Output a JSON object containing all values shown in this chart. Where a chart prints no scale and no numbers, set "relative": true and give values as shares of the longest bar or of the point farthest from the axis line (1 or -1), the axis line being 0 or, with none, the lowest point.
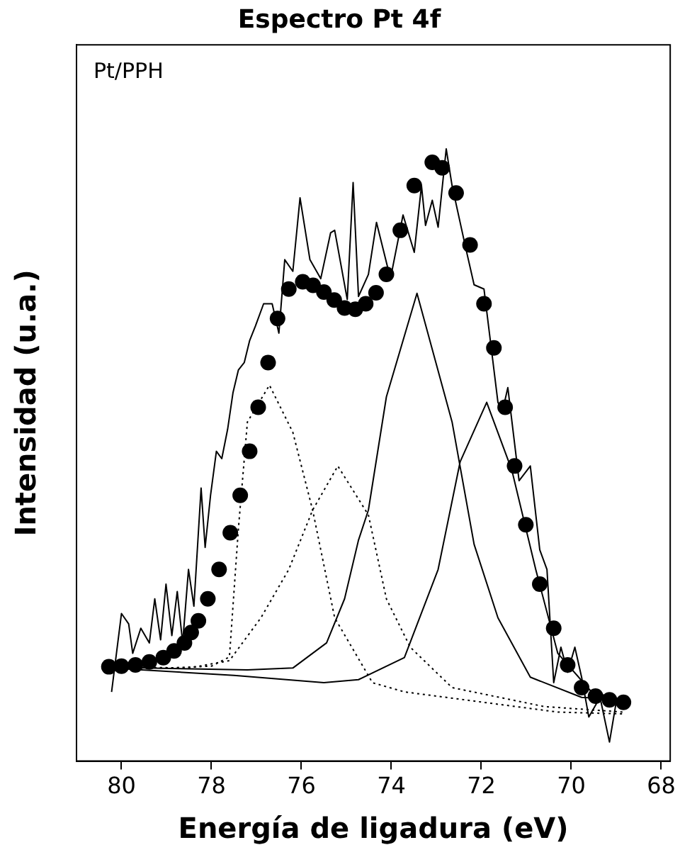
{
  "chart_data": {
    "type": "line",
    "title": "Espectro Pt 4f",
    "xlabel": "Energía de ligadura (eV)",
    "ylabel": "Intensidad (u.a.)",
    "annotations": [
      "Pt/PPH"
    ],
    "relative": true,
    "xlim": [
      81,
      67.8
    ],
    "xticks": [
      80,
      78,
      76,
      74,
      72,
      70,
      68
    ],
    "grid": false,
    "legend": false,
    "marker": "none",
    "series": [
      {
        "type": "line",
        "color": "#000000",
        "line_style": "solid",
        "x": [
          80.22,
          80.0,
          79.84,
          79.75,
          79.57,
          79.38,
          79.26,
          79.13,
          79.01,
          78.88,
          78.76,
          78.64,
          78.51,
          78.39,
          78.23,
          78.14,
          78.02,
          77.89,
          77.77,
          77.64,
          77.52,
          77.4,
          77.27,
          77.15,
          77.02,
          76.84,
          76.65,
          76.5,
          76.37,
          76.19,
          76.03,
          75.81,
          75.57,
          75.35,
          75.26,
          74.98,
          74.85,
          74.73,
          74.51,
          74.33,
          74.02,
          73.74,
          73.49,
          73.33,
          73.24,
          73.09,
          72.96,
          72.78,
          72.65,
          72.34,
          72.16,
          71.94,
          71.63,
          71.53,
          71.41,
          71.16,
          70.91,
          70.7,
          70.54,
          70.39,
          70.23,
          70.08,
          69.92,
          69.77,
          69.61,
          69.36,
          69.15,
          68.99
        ],
        "values": [
          0.113,
          0.241,
          0.224,
          0.176,
          0.217,
          0.193,
          0.265,
          0.198,
          0.289,
          0.205,
          0.277,
          0.193,
          0.313,
          0.253,
          0.446,
          0.349,
          0.434,
          0.506,
          0.494,
          0.542,
          0.602,
          0.639,
          0.651,
          0.687,
          0.711,
          0.747,
          0.747,
          0.699,
          0.819,
          0.8,
          0.92,
          0.819,
          0.788,
          0.863,
          0.867,
          0.754,
          0.945,
          0.759,
          0.795,
          0.88,
          0.788,
          0.892,
          0.831,
          0.94,
          0.875,
          0.916,
          0.872,
          1.0,
          0.94,
          0.836,
          0.778,
          0.771,
          0.586,
          0.571,
          0.61,
          0.458,
          0.482,
          0.345,
          0.313,
          0.128,
          0.186,
          0.145,
          0.186,
          0.137,
          0.072,
          0.104,
          0.031,
          0.101
        ]
      },
      {
        "type": "scatter",
        "color": "#000000",
        "marker": "circle",
        "x": [
          80.28,
          80.0,
          79.69,
          79.38,
          79.07,
          78.83,
          78.6,
          78.45,
          78.29,
          78.08,
          77.83,
          77.58,
          77.36,
          77.15,
          76.96,
          76.74,
          76.53,
          76.28,
          75.97,
          75.74,
          75.5,
          75.27,
          75.04,
          74.8,
          74.57,
          74.34,
          74.11,
          73.8,
          73.49,
          73.09,
          72.87,
          72.56,
          72.25,
          71.94,
          71.72,
          71.47,
          71.26,
          71.01,
          70.7,
          70.39,
          70.08,
          69.77,
          69.46,
          69.15,
          68.84
        ],
        "values": [
          0.154,
          0.155,
          0.157,
          0.162,
          0.169,
          0.18,
          0.193,
          0.21,
          0.229,
          0.265,
          0.313,
          0.373,
          0.434,
          0.506,
          0.578,
          0.651,
          0.723,
          0.771,
          0.783,
          0.777,
          0.766,
          0.753,
          0.74,
          0.738,
          0.747,
          0.765,
          0.795,
          0.867,
          0.94,
          0.978,
          0.969,
          0.928,
          0.843,
          0.747,
          0.675,
          0.578,
          0.482,
          0.386,
          0.289,
          0.217,
          0.157,
          0.12,
          0.106,
          0.1,
          0.096
        ]
      },
      {
        "type": "line",
        "color": "#000000",
        "line_style": "dotted",
        "x": [
          80.28,
          79.0,
          78.0,
          77.6,
          77.4,
          77.2,
          76.71,
          76.19,
          75.75,
          75.26,
          74.42,
          73.71,
          70.3,
          68.84
        ],
        "values": [
          0.154,
          0.152,
          0.155,
          0.17,
          0.38,
          0.554,
          0.614,
          0.537,
          0.41,
          0.234,
          0.128,
          0.113,
          0.08,
          0.077
        ]
      },
      {
        "type": "line",
        "color": "#000000",
        "line_style": "dotted",
        "x": [
          80.28,
          78.5,
          77.6,
          76.9,
          76.28,
          75.75,
          75.19,
          74.51,
          74.11,
          73.58,
          72.65,
          70.6,
          68.84
        ],
        "values": [
          0.154,
          0.152,
          0.164,
          0.234,
          0.313,
          0.41,
          0.482,
          0.402,
          0.265,
          0.186,
          0.12,
          0.089,
          0.08
        ]
      },
      {
        "type": "line",
        "color": "#000000",
        "line_style": "solid",
        "x": [
          80.28,
          79.5,
          77.2,
          76.19,
          75.44,
          75.04,
          74.73,
          74.51,
          74.11,
          73.43,
          72.65,
          72.16,
          71.63,
          70.91,
          69.77,
          68.93
        ],
        "values": [
          0.152,
          0.152,
          0.149,
          0.152,
          0.193,
          0.265,
          0.361,
          0.41,
          0.595,
          0.764,
          0.554,
          0.354,
          0.234,
          0.137,
          0.104,
          0.101
        ]
      },
      {
        "type": "line",
        "color": "#000000",
        "line_style": "solid",
        "x": [
          80.28,
          77.5,
          75.5,
          74.73,
          73.71,
          72.96,
          72.47,
          71.88,
          71.32,
          70.79,
          70.3,
          69.55,
          68.93
        ],
        "values": [
          0.152,
          0.14,
          0.128,
          0.133,
          0.169,
          0.313,
          0.489,
          0.586,
          0.475,
          0.313,
          0.176,
          0.113,
          0.101
        ]
      }
    ]
  }
}
